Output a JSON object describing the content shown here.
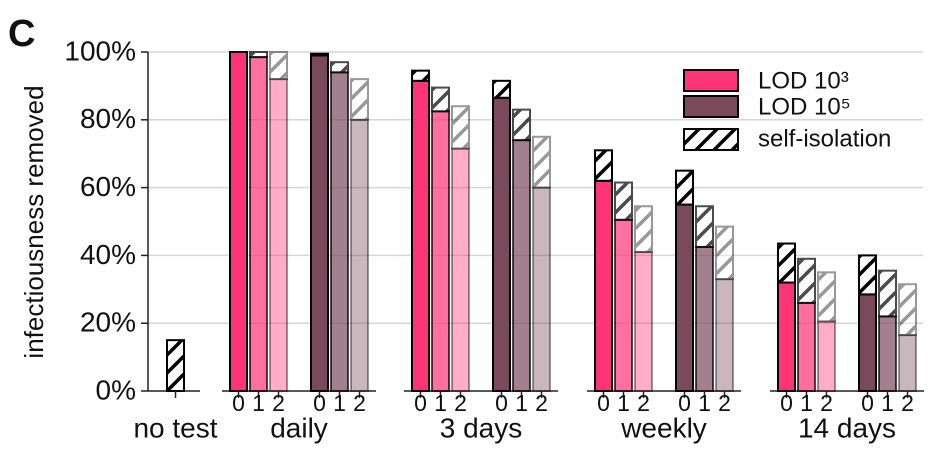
{
  "chart_data": {
    "type": "grouped_stacked_bar",
    "panel_label": "C",
    "ylabel": "infectiousness removed",
    "ylim": [
      0,
      100
    ],
    "yticks": [
      {
        "value": 0,
        "label": "0%"
      },
      {
        "value": 20,
        "label": "20%"
      },
      {
        "value": 40,
        "label": "40%"
      },
      {
        "value": 60,
        "label": "60%"
      },
      {
        "value": 80,
        "label": "80%"
      },
      {
        "value": 100,
        "label": "100%"
      }
    ],
    "grid": true,
    "categories": [
      "no test",
      "daily",
      "3 days",
      "weekly",
      "14 days"
    ],
    "delays": [
      "0",
      "1",
      "2"
    ],
    "delay_opacity": [
      1,
      0.7,
      0.4
    ],
    "isolation_name": "self-isolation",
    "no_test_isolation": 15,
    "series": [
      {
        "name": "LOD 10³",
        "color": "#ff3377",
        "tested": [
          null,
          [
            100,
            98.5,
            92
          ],
          [
            91.5,
            82.5,
            71.5
          ],
          [
            62,
            50.5,
            41
          ],
          [
            32,
            26,
            20.5
          ]
        ],
        "isolation": [
          null,
          [
            0,
            1.5,
            8
          ],
          [
            3,
            7,
            12.5
          ],
          [
            9,
            11,
            13.5
          ],
          [
            11.5,
            13,
            14.5
          ]
        ]
      },
      {
        "name": "LOD 10⁵",
        "color": "#7a4a5c",
        "tested": [
          null,
          [
            99,
            94,
            80
          ],
          [
            86.5,
            74,
            60
          ],
          [
            55,
            42.5,
            33
          ],
          [
            28.5,
            22,
            16.5
          ]
        ],
        "isolation": [
          null,
          [
            0.5,
            3,
            12
          ],
          [
            5,
            9,
            15
          ],
          [
            10,
            12,
            15.5
          ],
          [
            11.5,
            13.5,
            15
          ]
        ]
      }
    ],
    "legend": "upper right"
  }
}
